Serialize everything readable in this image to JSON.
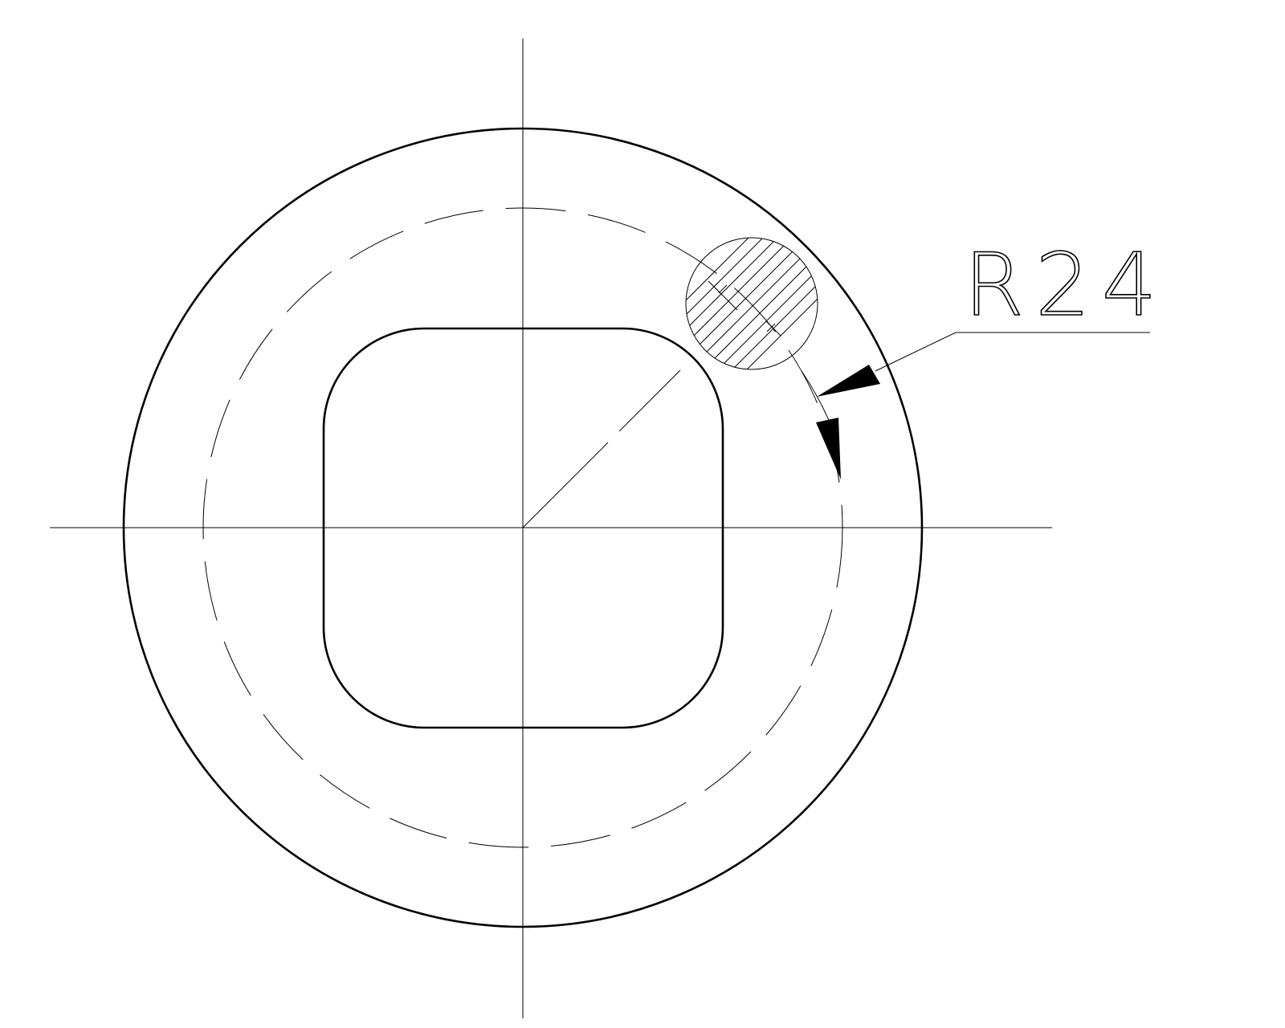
{
  "dimension": {
    "label": "R24"
  },
  "colors": {
    "line": "#000000",
    "background": "#ffffff"
  }
}
